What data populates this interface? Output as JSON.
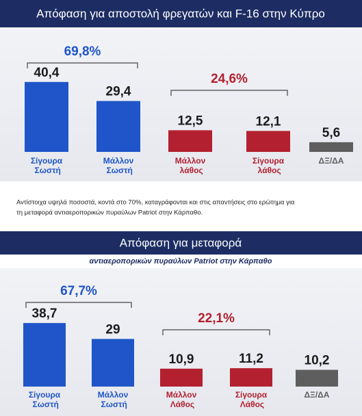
{
  "chart_data": [
    {
      "type": "bar",
      "title": "Απόφαση για αποστολή φρεγατών και F-16 στην Κύπρο",
      "categories": [
        "Σίγουρα Σωστή",
        "Μάλλον Σωστή",
        "Μάλλον λάθος",
        "Σίγουρα λάθος",
        "ΔΞ/ΔΑ"
      ],
      "values": [
        40.4,
        29.4,
        12.5,
        12.1,
        5.6
      ],
      "value_labels": [
        "40,4",
        "29,4",
        "12,5",
        "12,1",
        "5,6"
      ],
      "colors": [
        "#1f55c9",
        "#1f55c9",
        "#b3202f",
        "#b3202f",
        "#5e5e5e"
      ],
      "annotations": [
        {
          "text": "69,8%",
          "color": "#1f55c9"
        },
        {
          "text": "24,6%",
          "color": "#b3202f"
        }
      ]
    },
    {
      "type": "bar",
      "title": "Απόφαση για μεταφορά",
      "subtitle": "αντιαεροπορικών πυραύλων Patriot στην Κάρπαθο",
      "categories": [
        "Σίγουρα Σωστή",
        "Μάλλον Σωστή",
        "Μάλλον Λάθος",
        "Σίγουρα Λάθος",
        "ΔΞ/ΔΑ"
      ],
      "values": [
        38.7,
        29,
        10.9,
        11.2,
        10.2
      ],
      "value_labels": [
        "38,7",
        "29",
        "10,9",
        "11,2",
        "10,2"
      ],
      "colors": [
        "#1f55c9",
        "#1f55c9",
        "#b3202f",
        "#b3202f",
        "#5e5e5e"
      ],
      "annotations": [
        {
          "text": "67,7%",
          "color": "#1f55c9"
        },
        {
          "text": "22,1%",
          "color": "#b3202f"
        }
      ]
    }
  ],
  "article_text": [
    "Αντίστοιχα υψηλά ποσοστά, κοντά στο 70%, καταγράφονται και στις απαντήσεις στο ερώτημα για",
    "τη μεταφορά αντιαεροπορικών πυραύλων Patriot στην Κάρπαθο."
  ]
}
